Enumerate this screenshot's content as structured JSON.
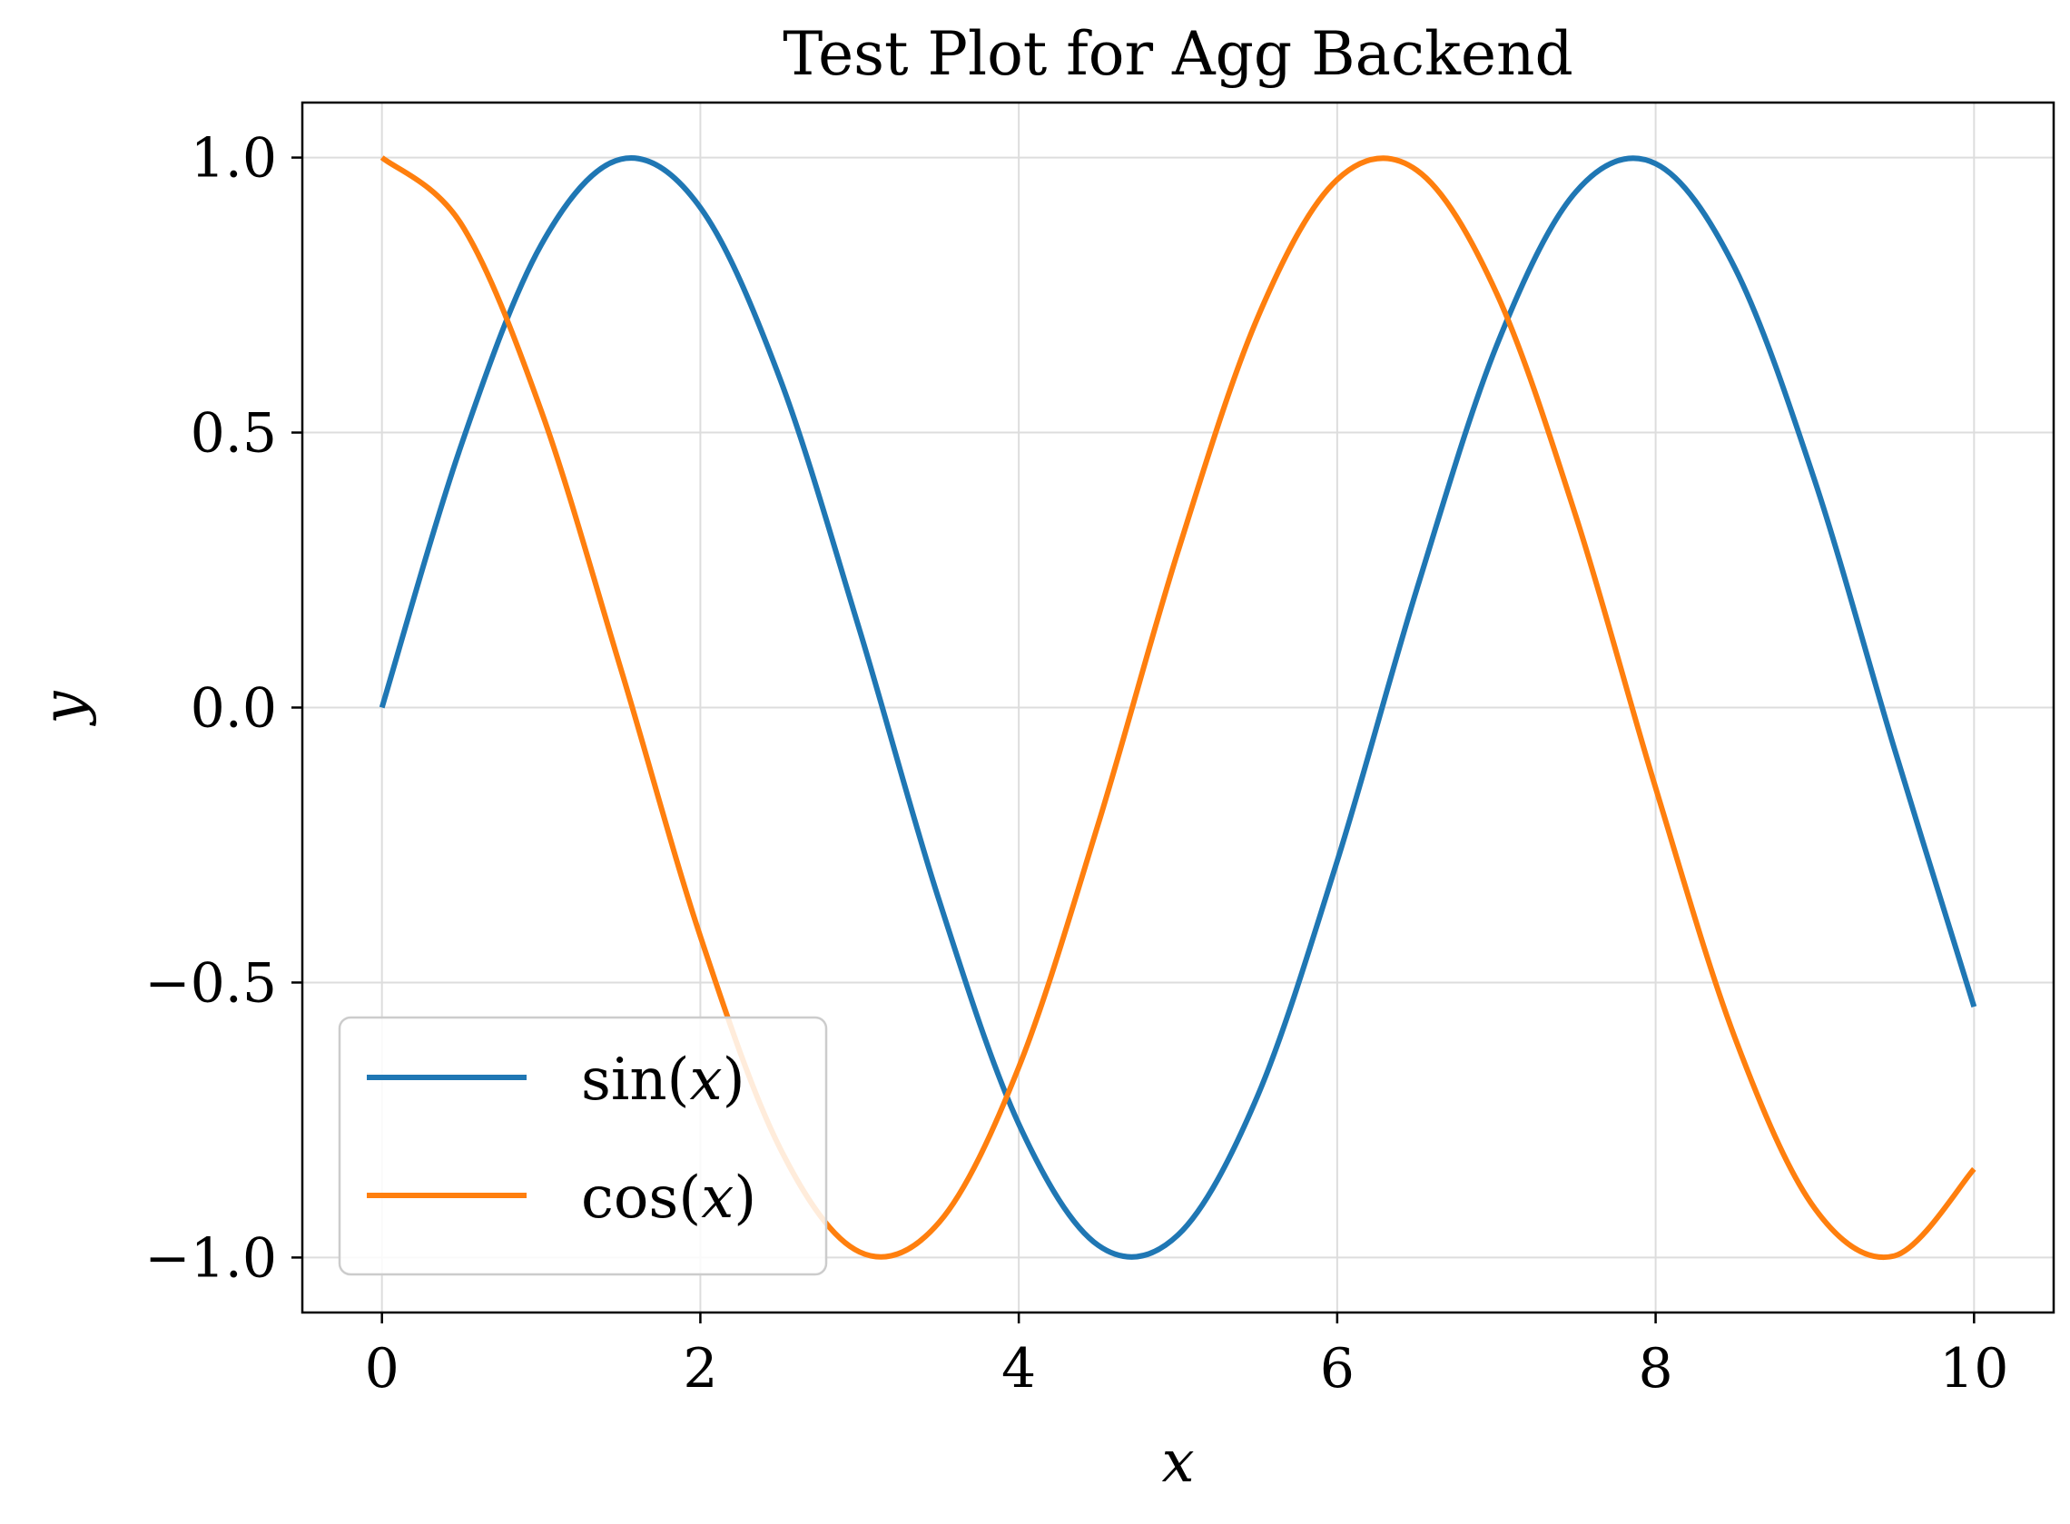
{
  "chart_data": {
    "type": "line",
    "title": "Test Plot for Agg Backend",
    "xlabel": "x",
    "ylabel": "y",
    "xlim": [
      -0.5,
      10.5
    ],
    "ylim": [
      -1.1,
      1.1
    ],
    "xticks": [
      0,
      2,
      4,
      6,
      8,
      10
    ],
    "yticks": [
      -1.0,
      -0.5,
      0.0,
      0.5,
      1.0
    ],
    "xtick_labels": [
      "0",
      "2",
      "4",
      "6",
      "8",
      "10"
    ],
    "ytick_labels": [
      "−1.0",
      "−0.5",
      "0.0",
      "0.5",
      "1.0"
    ],
    "grid": true,
    "legend_position": "lower-left",
    "series": [
      {
        "name": "sin(x)",
        "name_parts": [
          "sin(",
          "x",
          ")"
        ],
        "color": "#1f77b4",
        "x": [
          0.0,
          0.5,
          1.0,
          1.5,
          2.0,
          2.5,
          3.0,
          3.5,
          4.0,
          4.5,
          5.0,
          5.5,
          6.0,
          6.5,
          7.0,
          7.5,
          8.0,
          8.5,
          9.0,
          9.5,
          10.0
        ],
        "y": [
          0.0,
          0.479,
          0.841,
          0.997,
          0.909,
          0.598,
          0.141,
          -0.351,
          -0.757,
          -0.978,
          -0.959,
          -0.706,
          -0.279,
          0.215,
          0.657,
          0.938,
          0.989,
          0.798,
          0.412,
          -0.075,
          -0.544
        ]
      },
      {
        "name": "cos(x)",
        "name_parts": [
          "cos(",
          "x",
          ")"
        ],
        "color": "#ff7f0e",
        "x": [
          0.0,
          0.5,
          1.0,
          1.5,
          2.0,
          2.5,
          3.0,
          3.5,
          4.0,
          4.5,
          5.0,
          5.5,
          6.0,
          6.5,
          7.0,
          7.5,
          8.0,
          8.5,
          9.0,
          9.5,
          10.0
        ],
        "y": [
          1.0,
          0.878,
          0.54,
          0.071,
          -0.416,
          -0.801,
          -0.99,
          -0.936,
          -0.654,
          -0.211,
          0.284,
          0.709,
          0.96,
          0.977,
          0.754,
          0.347,
          -0.146,
          -0.602,
          -0.911,
          -0.997,
          -0.839
        ]
      }
    ]
  }
}
